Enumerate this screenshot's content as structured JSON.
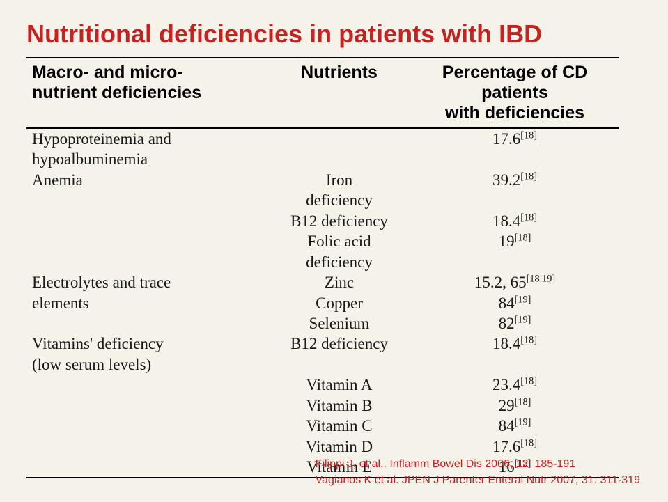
{
  "title": "Nutritional deficiencies in patients with IBD",
  "headers": {
    "col1_l1": "Macro- and micro-",
    "col1_l2": "nutrient deficiencies",
    "col2": "Nutrients",
    "col3_l1": "Percentage of CD patients",
    "col3_l2": "with deficiencies"
  },
  "rows": [
    {
      "c1": "Hypoproteinemia and",
      "c2": "",
      "val": "17.6",
      "sup": "[18]"
    },
    {
      "c1": "hypoalbuminemia",
      "c2": "",
      "val": "",
      "sup": ""
    },
    {
      "c1": "Anemia",
      "c2": "Iron",
      "val": "39.2",
      "sup": "[18]"
    },
    {
      "c1": "",
      "c2": "deficiency",
      "val": "",
      "sup": ""
    },
    {
      "c1": "",
      "c2": "B12 deficiency",
      "val": "18.4",
      "sup": "[18]"
    },
    {
      "c1": "",
      "c2": "Folic acid",
      "val": "19",
      "sup": "[18]"
    },
    {
      "c1": "",
      "c2": "deficiency",
      "val": "",
      "sup": ""
    },
    {
      "c1": "Electrolytes and trace",
      "c2": "Zinc",
      "val": "15.2, 65",
      "sup": "[18,19]"
    },
    {
      "c1": "elements",
      "c2": "Copper",
      "val": "84",
      "sup": "[19]"
    },
    {
      "c1": "",
      "c2": "Selenium",
      "val": "82",
      "sup": "[19]"
    },
    {
      "c1": "Vitamins' deficiency",
      "c2": "B12 deficiency",
      "val": "18.4",
      "sup": "[18]"
    },
    {
      "c1": "(low serum levels)",
      "c2": "",
      "val": "",
      "sup": ""
    },
    {
      "c1": "",
      "c2": "Vitamin A",
      "val": "23.4",
      "sup": "[18]"
    },
    {
      "c1": "",
      "c2": "Vitamin B",
      "val": "29",
      "sup": "[18]"
    },
    {
      "c1": "",
      "c2": "Vitamin C",
      "val": "84",
      "sup": "[19]"
    },
    {
      "c1": "",
      "c2": "Vitamin D",
      "val": "17.6",
      "sup": "[18]"
    },
    {
      "c1": "",
      "c2": "Vitamin E",
      "val": "16",
      "sup": "[15]"
    }
  ],
  "refs": {
    "r1": "Filippi J, et al.. Inflamm Bowel Dis 2006; 12: 185-191",
    "r2": "Vagianos K et al. JPEN J Parenter Enteral Nutr 2007; 31: 311-319"
  }
}
